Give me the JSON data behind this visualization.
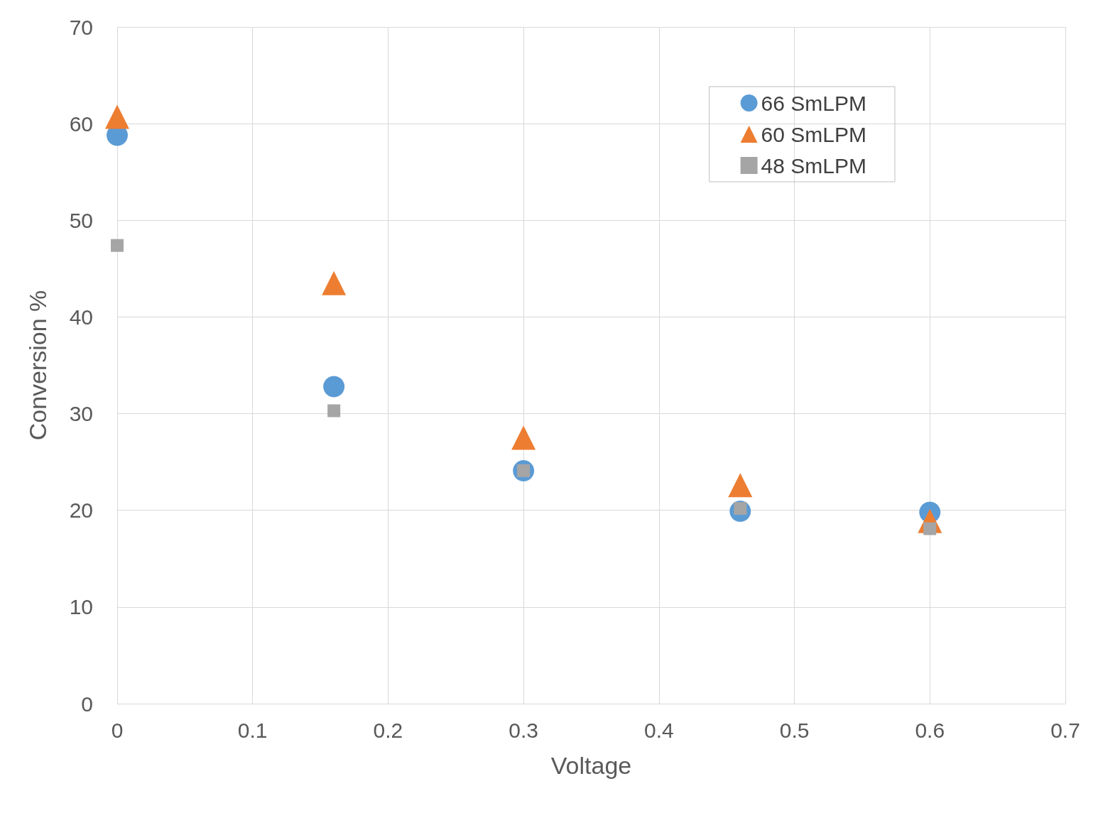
{
  "chart_data": {
    "type": "scatter",
    "xlabel": "Voltage",
    "ylabel": "Conversion %",
    "x": [
      0,
      0.16,
      0.3,
      0.46,
      0.6
    ],
    "series": [
      {
        "name": "66 SmLPM",
        "color": "#5b9bd5",
        "marker": "circle",
        "values": [
          58.8,
          32.8,
          24.1,
          19.9,
          19.8
        ]
      },
      {
        "name": "60 SmLPM",
        "color": "#ed7d31",
        "marker": "triangle",
        "values": [
          60.7,
          43.5,
          27.5,
          22.6,
          18.9
        ]
      },
      {
        "name": "48 SmLPM",
        "color": "#a5a5a5",
        "marker": "square",
        "values": [
          47.4,
          30.3,
          24.1,
          20.2,
          18.1
        ]
      }
    ],
    "xlim": [
      0,
      0.7
    ],
    "xticks": [
      0,
      0.1,
      0.2,
      0.3,
      0.4,
      0.5,
      0.6,
      0.7
    ],
    "ylim": [
      0,
      70
    ],
    "yticks": [
      0,
      10,
      20,
      30,
      40,
      50,
      60,
      70
    ],
    "grid": true,
    "legend": "top right"
  }
}
